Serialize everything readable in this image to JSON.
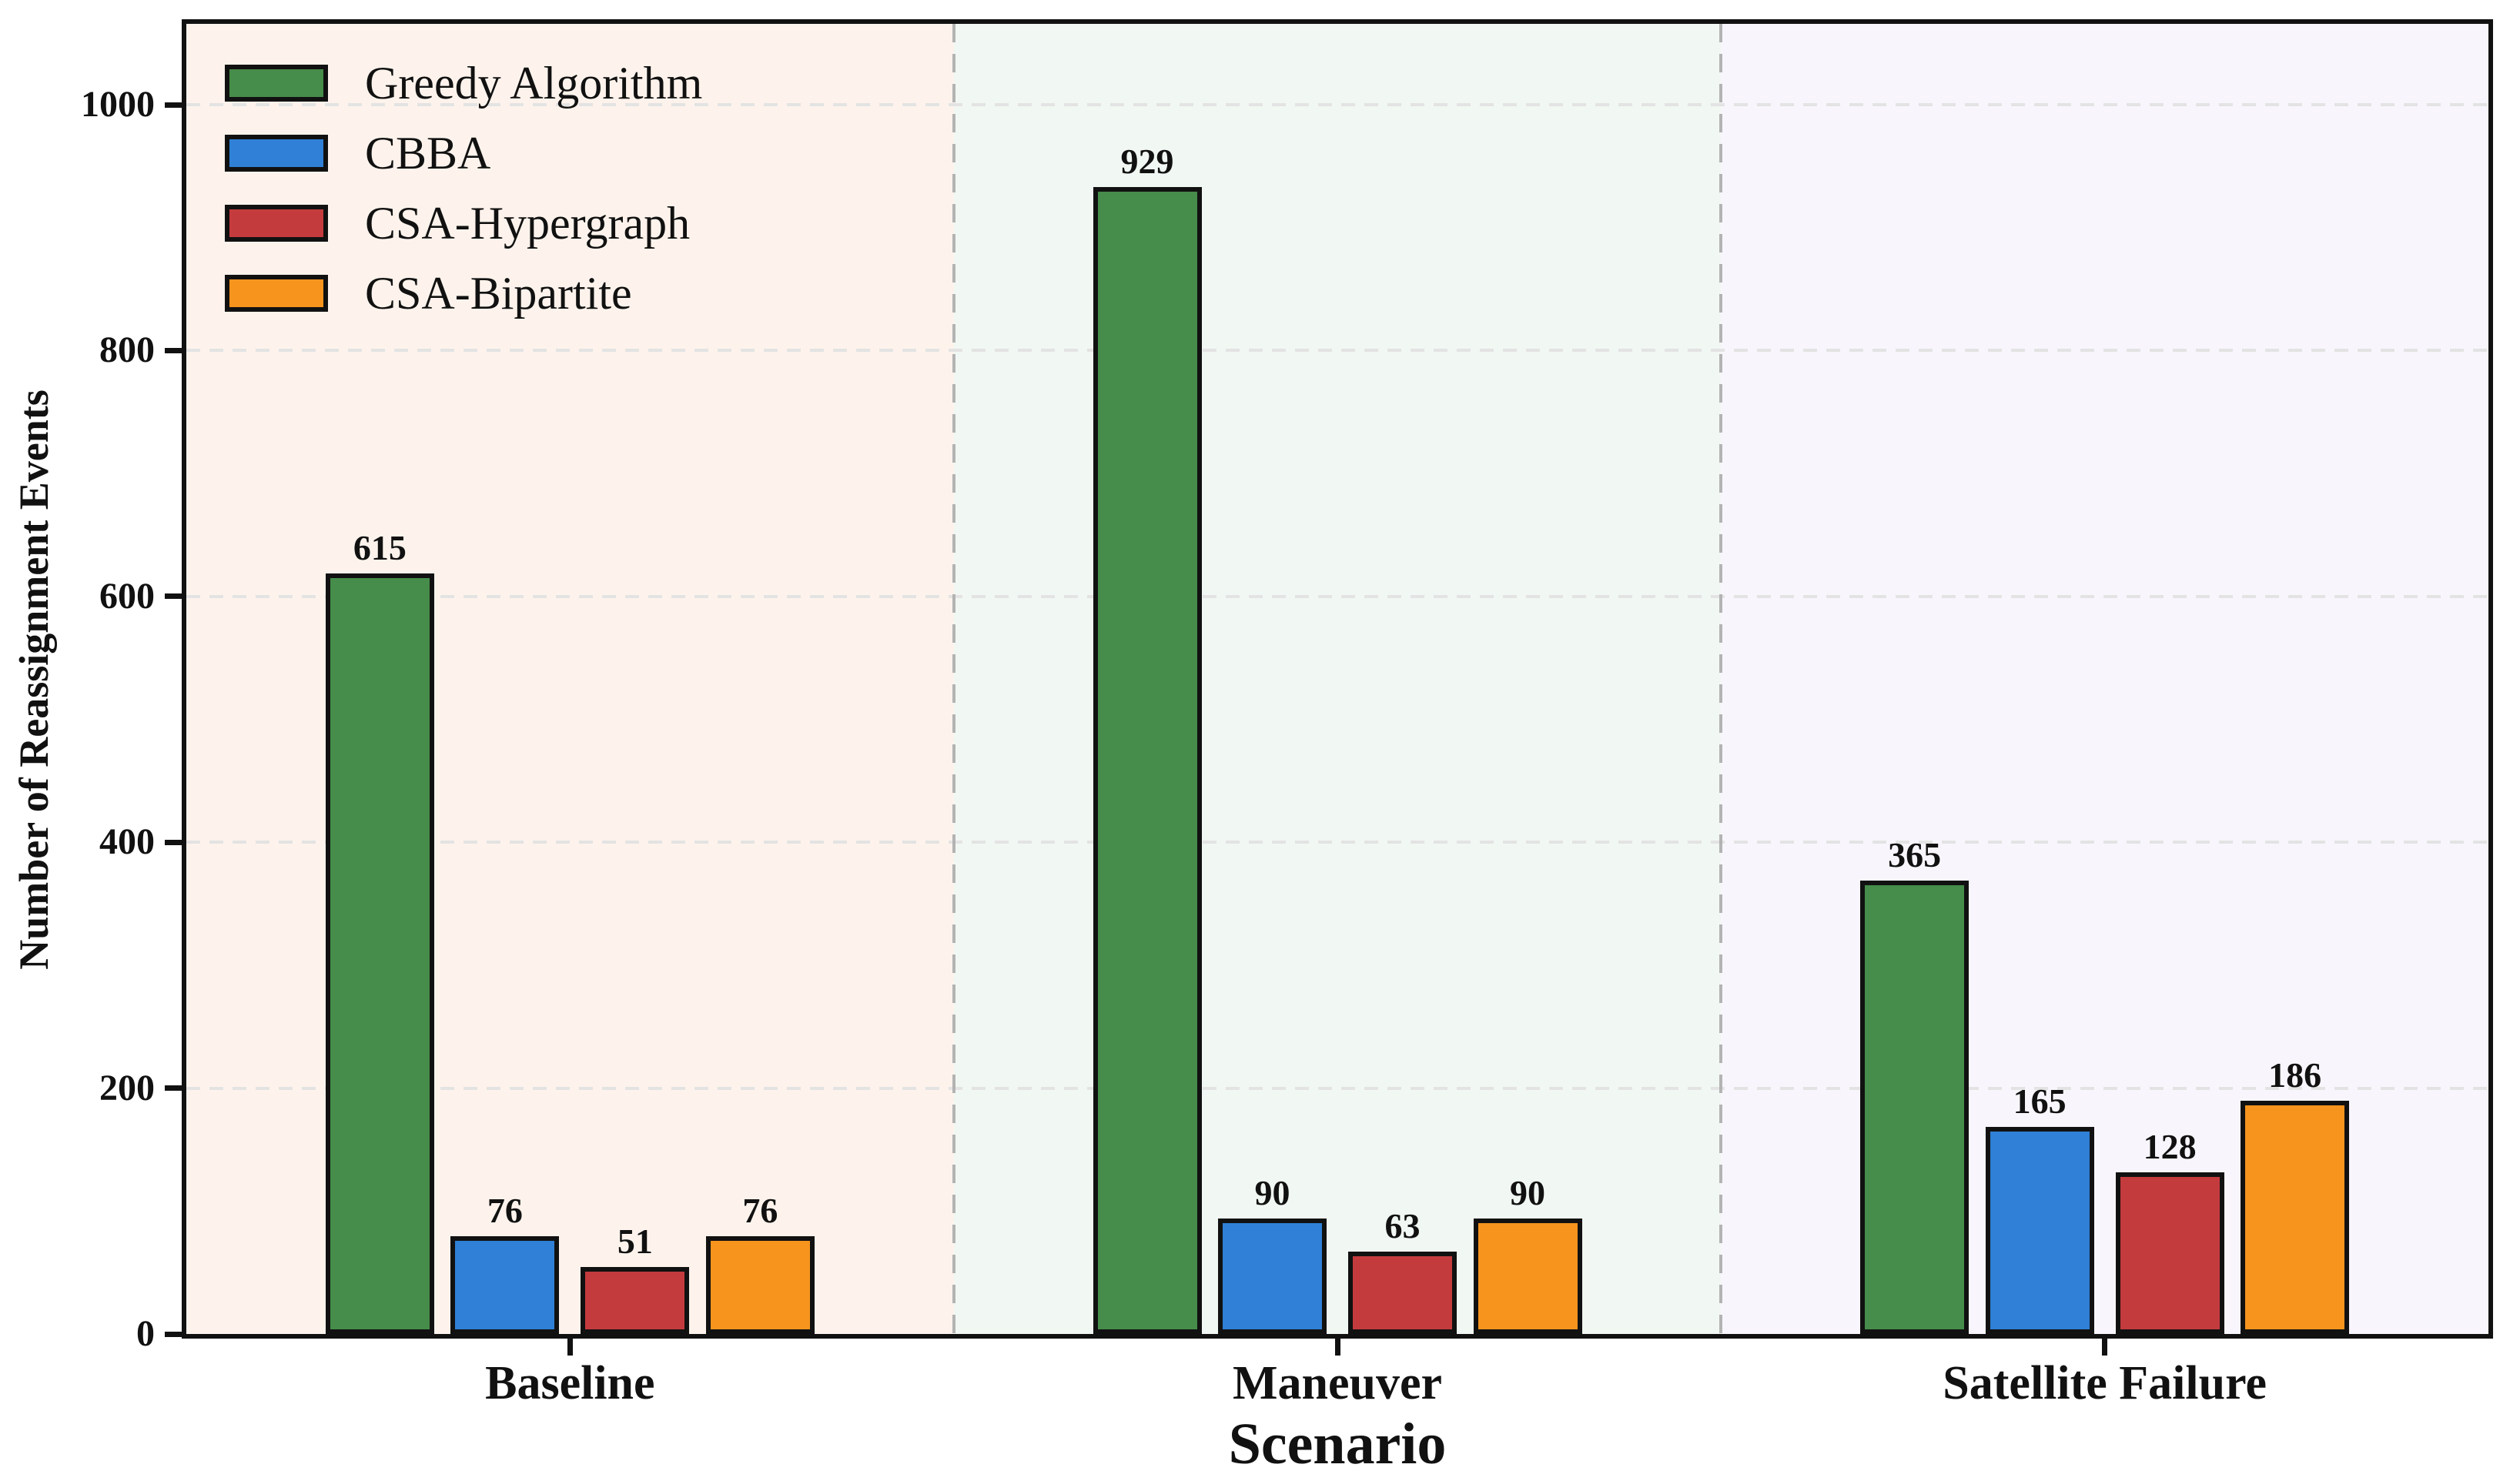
{
  "chart_data": {
    "type": "bar",
    "title": "",
    "xlabel": "Scenario",
    "ylabel": "Number of Reassignment Events",
    "categories": [
      "Baseline",
      "Maneuver",
      "Satellite Failure"
    ],
    "series": [
      {
        "name": "Greedy Algorithm",
        "color": "#468c4a",
        "values": [
          615,
          929,
          365
        ]
      },
      {
        "name": "CBBA",
        "color": "#2f80d6",
        "values": [
          76,
          90,
          165
        ]
      },
      {
        "name": "CSA-Hypergraph",
        "color": "#c43b3e",
        "values": [
          51,
          63,
          128
        ]
      },
      {
        "name": "CSA-Bipartite",
        "color": "#f6941e",
        "values": [
          76,
          90,
          186
        ]
      }
    ],
    "bar_value_labels": [
      [
        "615",
        "929",
        "365"
      ],
      [
        "76",
        "90",
        "165"
      ],
      [
        "51",
        "63",
        "128"
      ],
      [
        "76",
        "90",
        "186"
      ]
    ],
    "yticks": [
      "0",
      "200",
      "400",
      "600",
      "800",
      "1000"
    ],
    "ylim": [
      0,
      1066
    ],
    "grid": "horizontal-dashed",
    "legend_position": "upper-left",
    "section_backgrounds": [
      "#fdf3ec",
      "#f1f7f2",
      "#f8f6fc"
    ],
    "gridline_color": "#e3e3e3",
    "separator_color": "#b3b3b3",
    "edge_color": "#111111"
  }
}
